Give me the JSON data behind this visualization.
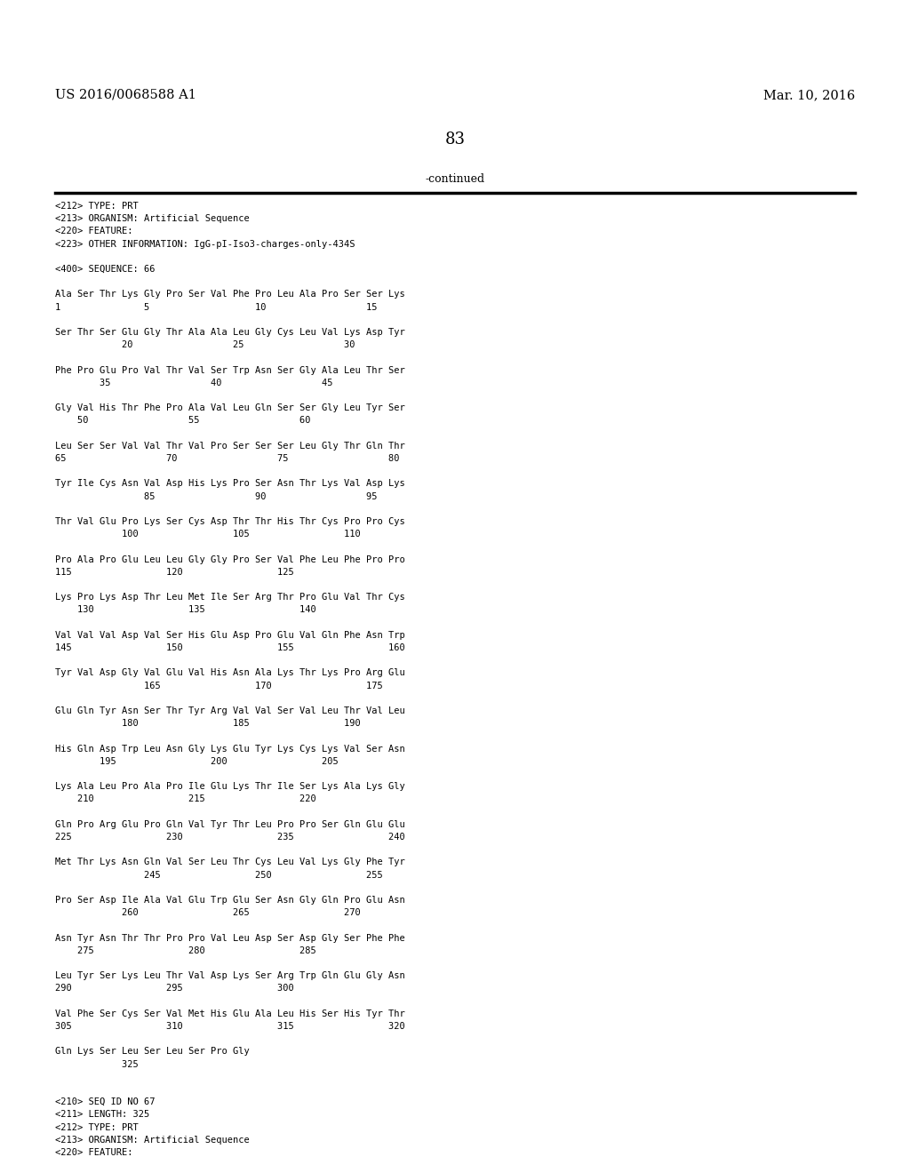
{
  "header_left": "US 2016/0068588 A1",
  "header_right": "Mar. 10, 2016",
  "page_number": "83",
  "continued_text": "-continued",
  "background_color": "#ffffff",
  "text_color": "#000000",
  "mono_font": "DejaVu Sans Mono",
  "header_font_size": 10.5,
  "page_num_font_size": 13,
  "continued_font_size": 9,
  "content_font_size": 7.5,
  "content_lines": [
    "<212> TYPE: PRT",
    "<213> ORGANISM: Artificial Sequence",
    "<220> FEATURE:",
    "<223> OTHER INFORMATION: IgG-pI-Iso3-charges-only-434S",
    "",
    "<400> SEQUENCE: 66",
    "",
    "Ala Ser Thr Lys Gly Pro Ser Val Phe Pro Leu Ala Pro Ser Ser Lys",
    "1               5                   10                  15",
    "",
    "Ser Thr Ser Glu Gly Thr Ala Ala Leu Gly Cys Leu Val Lys Asp Tyr",
    "            20                  25                  30",
    "",
    "Phe Pro Glu Pro Val Thr Val Ser Trp Asn Ser Gly Ala Leu Thr Ser",
    "        35                  40                  45",
    "",
    "Gly Val His Thr Phe Pro Ala Val Leu Gln Ser Ser Gly Leu Tyr Ser",
    "    50                  55                  60",
    "",
    "Leu Ser Ser Val Val Thr Val Pro Ser Ser Ser Leu Gly Thr Gln Thr",
    "65                  70                  75                  80",
    "",
    "Tyr Ile Cys Asn Val Asp His Lys Pro Ser Asn Thr Lys Val Asp Lys",
    "                85                  90                  95",
    "",
    "Thr Val Glu Pro Lys Ser Cys Asp Thr Thr His Thr Cys Pro Pro Cys",
    "            100                 105                 110",
    "",
    "Pro Ala Pro Glu Leu Leu Gly Gly Pro Ser Val Phe Leu Phe Pro Pro",
    "115                 120                 125",
    "",
    "Lys Pro Lys Asp Thr Leu Met Ile Ser Arg Thr Pro Glu Val Thr Cys",
    "    130                 135                 140",
    "",
    "Val Val Val Asp Val Ser His Glu Asp Pro Glu Val Gln Phe Asn Trp",
    "145                 150                 155                 160",
    "",
    "Tyr Val Asp Gly Val Glu Val His Asn Ala Lys Thr Lys Pro Arg Glu",
    "                165                 170                 175",
    "",
    "Glu Gln Tyr Asn Ser Thr Tyr Arg Val Val Ser Val Leu Thr Val Leu",
    "            180                 185                 190",
    "",
    "His Gln Asp Trp Leu Asn Gly Lys Glu Tyr Lys Cys Lys Val Ser Asn",
    "        195                 200                 205",
    "",
    "Lys Ala Leu Pro Ala Pro Ile Glu Lys Thr Ile Ser Lys Ala Lys Gly",
    "    210                 215                 220",
    "",
    "Gln Pro Arg Glu Pro Gln Val Tyr Thr Leu Pro Pro Ser Gln Glu Glu",
    "225                 230                 235                 240",
    "",
    "Met Thr Lys Asn Gln Val Ser Leu Thr Cys Leu Val Lys Gly Phe Tyr",
    "                245                 250                 255",
    "",
    "Pro Ser Asp Ile Ala Val Glu Trp Glu Ser Asn Gly Gln Pro Glu Asn",
    "            260                 265                 270",
    "",
    "Asn Tyr Asn Thr Thr Pro Pro Val Leu Asp Ser Asp Gly Ser Phe Phe",
    "    275                 280                 285",
    "",
    "Leu Tyr Ser Lys Leu Thr Val Asp Lys Ser Arg Trp Gln Glu Gly Asn",
    "290                 295                 300",
    "",
    "Val Phe Ser Cys Ser Val Met His Glu Ala Leu His Ser His Tyr Thr",
    "305                 310                 315                 320",
    "",
    "Gln Lys Ser Leu Ser Leu Ser Pro Gly",
    "            325",
    "",
    "",
    "<210> SEQ ID NO 67",
    "<211> LENGTH: 325",
    "<212> TYPE: PRT",
    "<213> ORGANISM: Artificial Sequence",
    "<220> FEATURE:"
  ]
}
